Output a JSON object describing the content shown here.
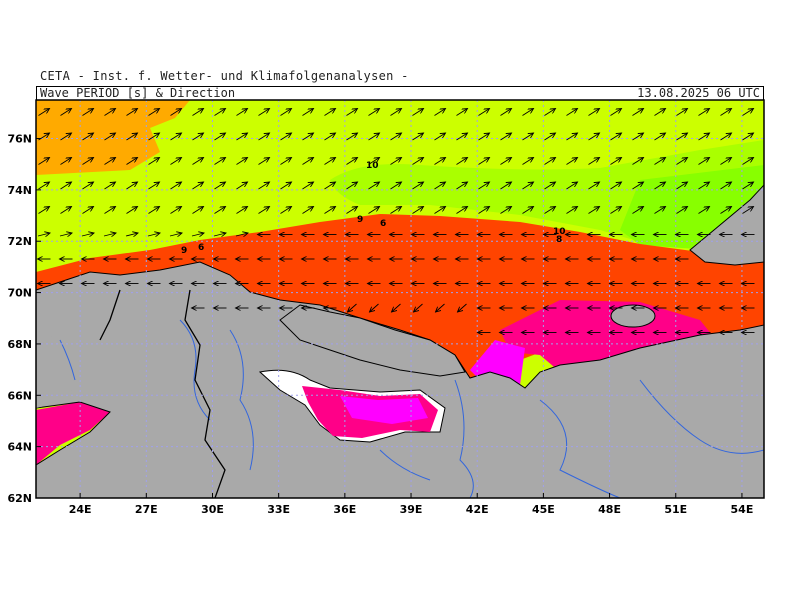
{
  "header": {
    "credit": "CETA - Inst. f. Wetter- und Klimafolgenanalysen -",
    "title": "Wave PERIOD [s] & Direction",
    "datetime": "13.08.2025 06 UTC"
  },
  "map": {
    "lon_range": [
      22,
      55
    ],
    "lat_range": [
      62,
      77.5
    ],
    "lat_ticks": [
      "62N",
      "64N",
      "66N",
      "68N",
      "70N",
      "72N",
      "74N",
      "76N"
    ],
    "lon_ticks": [
      "24E",
      "27E",
      "30E",
      "33E",
      "36E",
      "39E",
      "42E",
      "45E",
      "48E",
      "51E",
      "54E"
    ],
    "colors": {
      "land": "#a9a9a9",
      "period_10_plus": "#aaff00",
      "period_9_10": "#ccff00",
      "period_7_9": "#ffaa00",
      "period_5_7": "#ff4400",
      "period_3_5": "#ff0088",
      "period_lt3": "#ff00ff",
      "grid": "#b0b0ff",
      "rivers": "#3366dd"
    },
    "contour_labels": [
      "10",
      "9",
      "6",
      "9",
      "6",
      "10",
      "8"
    ]
  }
}
